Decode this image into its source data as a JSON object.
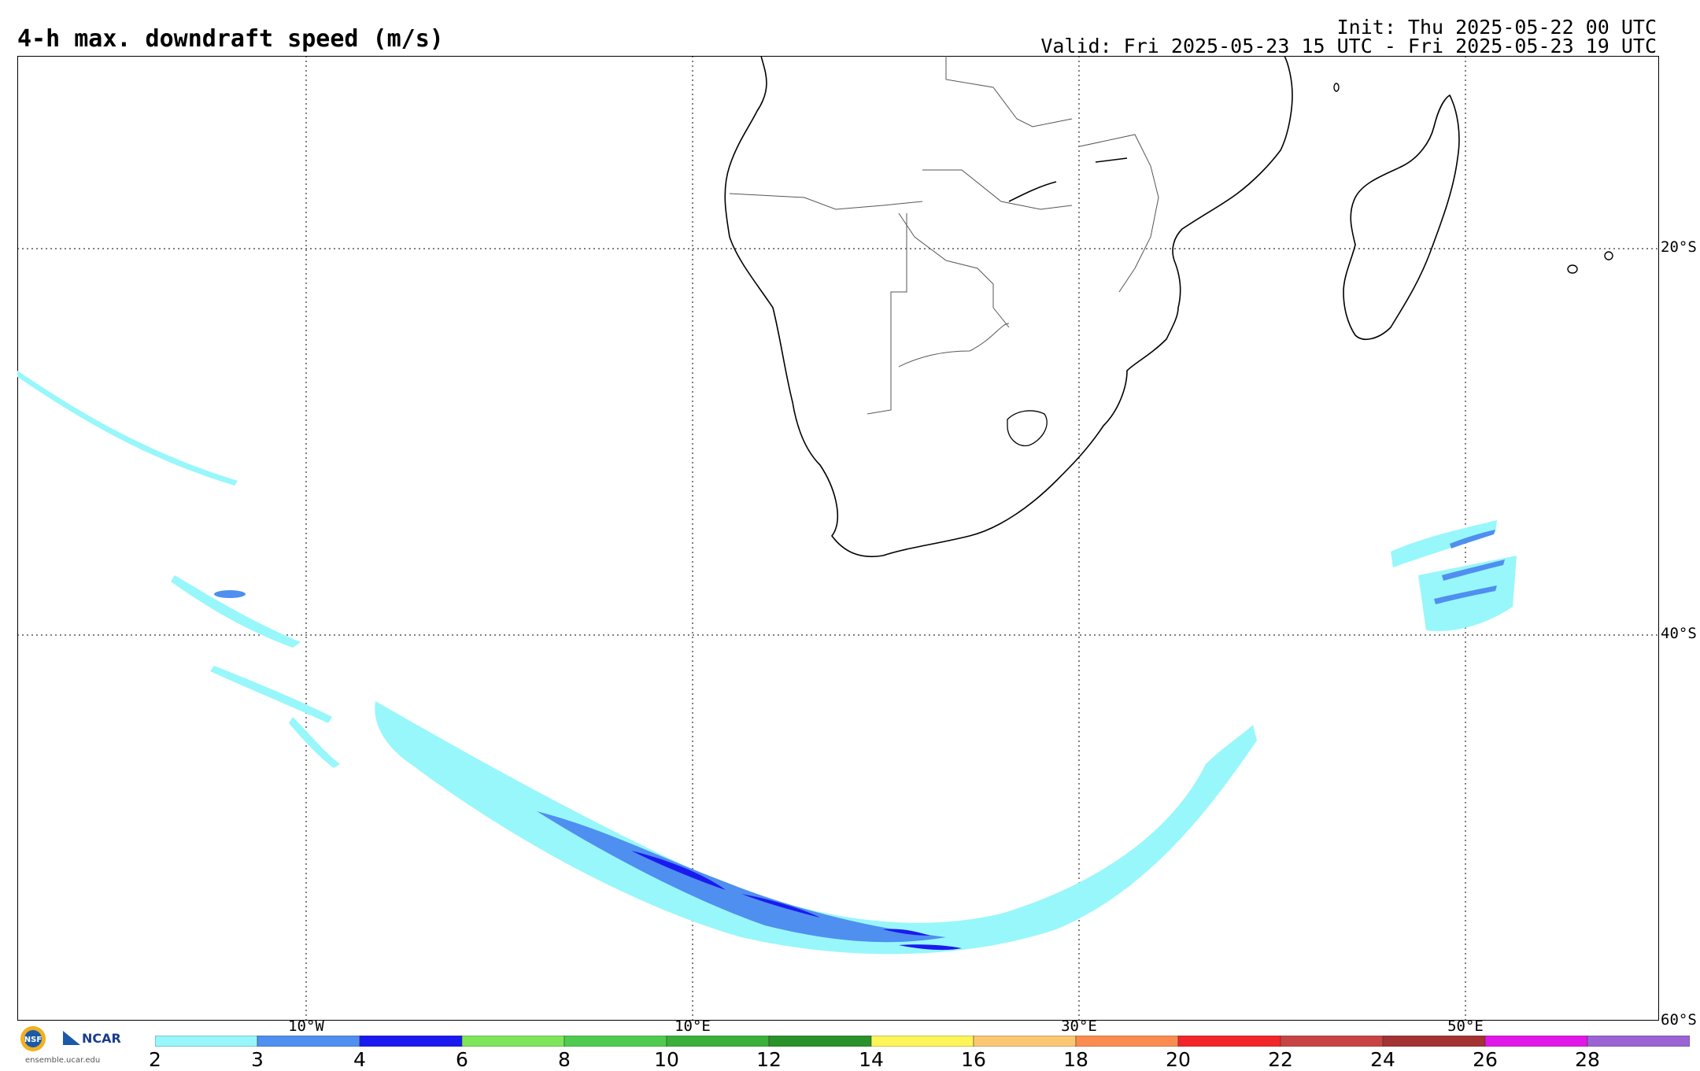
{
  "header": {
    "title": "4-h max. downdraft speed (m/s)",
    "init": "Init: Thu 2025-05-22 00 UTC",
    "valid": "Valid: Fri 2025-05-23 15 UTC - Fri 2025-05-23 19 UTC"
  },
  "map": {
    "latitudes": [
      {
        "label": "20°S",
        "value": -20
      },
      {
        "label": "40°S",
        "value": -40
      },
      {
        "label": "60°S",
        "value": -60
      }
    ],
    "longitudes": [
      {
        "label": "10°W",
        "value": -10
      },
      {
        "label": "10°E",
        "value": 10
      },
      {
        "label": "30°E",
        "value": 30
      },
      {
        "label": "50°E",
        "value": 50
      }
    ]
  },
  "colorbar": {
    "labels": [
      "2",
      "3",
      "4",
      "6",
      "8",
      "10",
      "12",
      "14",
      "16",
      "18",
      "20",
      "22",
      "24",
      "26",
      "28"
    ],
    "colors": [
      "#98f7fa",
      "#4f8ff0",
      "#1a1af0",
      "#7ee65b",
      "#4fcc4f",
      "#3ab03a",
      "#2a922a",
      "#fdf55a",
      "#fbc872",
      "#fb8c4f",
      "#f2262a",
      "#c84444",
      "#a33232",
      "#e117e8",
      "#9a64d4"
    ]
  },
  "logo": {
    "nsf": "NSF",
    "ncar": "NCAR",
    "url": "ensemble.ucar.edu"
  }
}
